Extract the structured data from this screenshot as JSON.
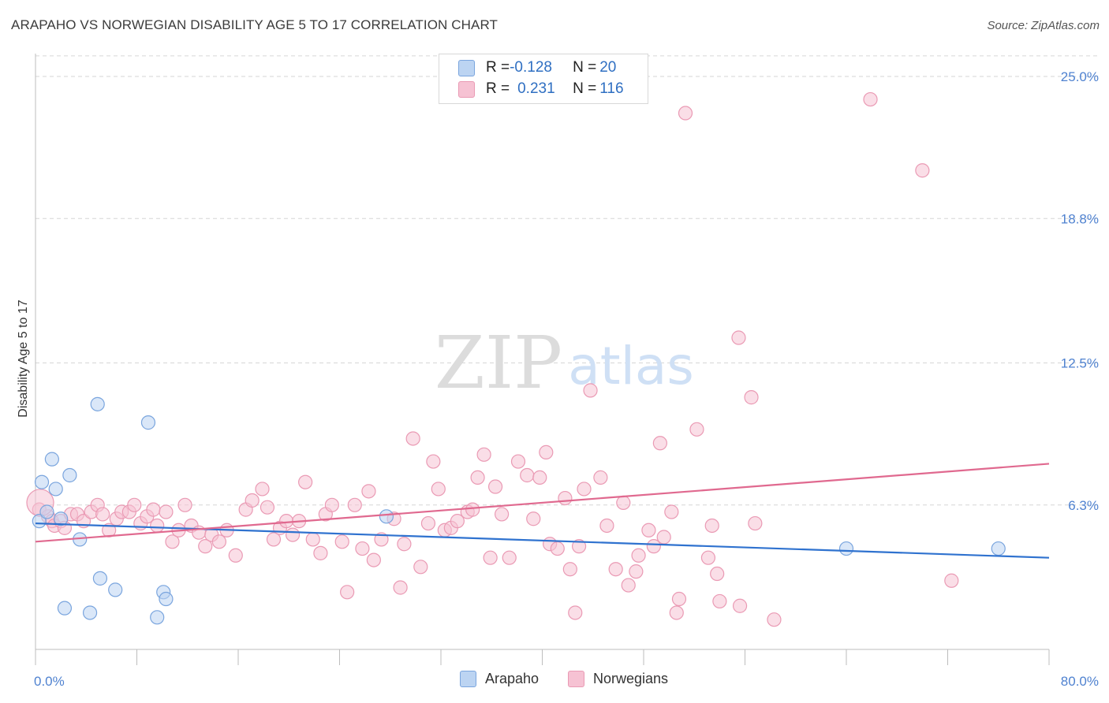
{
  "title": "ARAPAHO VS NORWEGIAN DISABILITY AGE 5 TO 17 CORRELATION CHART",
  "source": "Source: ZipAtlas.com",
  "watermark": {
    "zip": "ZIP",
    "atlas": "atlas"
  },
  "legend": {
    "rows": [
      {
        "r_label": "R = ",
        "r_value": "-0.128",
        "n_label": "N = ",
        "n_value": "20"
      },
      {
        "r_label": "R = ",
        "r_value": "0.231",
        "n_label": "N = ",
        "n_value": "116"
      }
    ]
  },
  "bottom_legend": {
    "arapaho": "Arapaho",
    "norwegians": "Norwegians"
  },
  "colors": {
    "arapaho_fill": "#bcd4f2",
    "arapaho_stroke": "#7aa5de",
    "arapaho_line": "#2f72cf",
    "norwegian_fill": "#f6c2d3",
    "norwegian_stroke": "#ea9ab4",
    "norwegian_line": "#e0698f",
    "tick_label": "#4f82d0",
    "grid": "#d6d6d6"
  },
  "chart_data": {
    "type": "scatter",
    "title": "ARAPAHO VS NORWEGIAN DISABILITY AGE 5 TO 17 CORRELATION CHART",
    "xlabel": "",
    "ylabel": "Disability Age 5 to 17",
    "xlim": [
      0,
      80
    ],
    "ylim": [
      0,
      25.9
    ],
    "x_tick_labels": [
      {
        "value": 0,
        "label": "0.0%"
      },
      {
        "value": 80,
        "label": "80.0%"
      }
    ],
    "y_tick_labels": [
      {
        "value": 6.3,
        "label": "6.3%"
      },
      {
        "value": 12.5,
        "label": "12.5%"
      },
      {
        "value": 18.8,
        "label": "18.8%"
      },
      {
        "value": 25.0,
        "label": "25.0%"
      }
    ],
    "x_minor_ticks": [
      0,
      8,
      16,
      24,
      32,
      40,
      48,
      56,
      64,
      72,
      80
    ],
    "series": [
      {
        "name": "Arapaho",
        "R": -0.128,
        "N": 20,
        "trend": {
          "x": [
            0,
            80
          ],
          "y": [
            5.5,
            4.0
          ]
        },
        "points": [
          [
            0.3,
            5.6
          ],
          [
            0.5,
            7.3
          ],
          [
            0.9,
            6.0
          ],
          [
            1.3,
            8.3
          ],
          [
            1.6,
            7.0
          ],
          [
            2.0,
            5.7
          ],
          [
            2.3,
            1.8
          ],
          [
            2.7,
            7.6
          ],
          [
            3.5,
            4.8
          ],
          [
            4.3,
            1.6
          ],
          [
            4.9,
            10.7
          ],
          [
            5.1,
            3.1
          ],
          [
            6.3,
            2.6
          ],
          [
            8.9,
            9.9
          ],
          [
            9.6,
            1.4
          ],
          [
            10.1,
            2.5
          ],
          [
            10.3,
            2.2
          ],
          [
            27.7,
            5.8
          ],
          [
            64.0,
            4.4
          ],
          [
            76.0,
            4.4
          ]
        ]
      },
      {
        "name": "Norwegians",
        "R": 0.231,
        "N": 116,
        "trend": {
          "x": [
            0,
            80
          ],
          "y": [
            4.7,
            8.1
          ]
        },
        "points": [
          [
            0.3,
            6.1
          ],
          [
            1.0,
            5.8
          ],
          [
            1.3,
            5.6
          ],
          [
            1.5,
            5.4
          ],
          [
            2.0,
            5.6
          ],
          [
            2.3,
            5.3
          ],
          [
            2.8,
            5.9
          ],
          [
            3.3,
            5.9
          ],
          [
            3.8,
            5.6
          ],
          [
            4.4,
            6.0
          ],
          [
            4.9,
            6.3
          ],
          [
            5.3,
            5.9
          ],
          [
            5.8,
            5.2
          ],
          [
            6.4,
            5.7
          ],
          [
            6.8,
            6.0
          ],
          [
            7.4,
            6.0
          ],
          [
            7.8,
            6.3
          ],
          [
            8.3,
            5.5
          ],
          [
            8.8,
            5.8
          ],
          [
            9.3,
            6.1
          ],
          [
            9.6,
            5.4
          ],
          [
            10.3,
            6.0
          ],
          [
            10.8,
            4.7
          ],
          [
            11.3,
            5.2
          ],
          [
            11.8,
            6.3
          ],
          [
            12.3,
            5.4
          ],
          [
            12.9,
            5.1
          ],
          [
            13.4,
            4.5
          ],
          [
            13.9,
            5.0
          ],
          [
            14.5,
            4.7
          ],
          [
            15.1,
            5.2
          ],
          [
            15.8,
            4.1
          ],
          [
            16.6,
            6.1
          ],
          [
            17.1,
            6.5
          ],
          [
            17.9,
            7.0
          ],
          [
            18.3,
            6.2
          ],
          [
            18.8,
            4.8
          ],
          [
            19.3,
            5.3
          ],
          [
            19.8,
            5.6
          ],
          [
            20.3,
            5.0
          ],
          [
            20.8,
            5.6
          ],
          [
            21.3,
            7.3
          ],
          [
            21.9,
            4.8
          ],
          [
            22.5,
            4.2
          ],
          [
            22.9,
            5.9
          ],
          [
            23.4,
            6.3
          ],
          [
            24.2,
            4.7
          ],
          [
            24.6,
            2.5
          ],
          [
            25.2,
            6.3
          ],
          [
            25.8,
            4.4
          ],
          [
            26.3,
            6.9
          ],
          [
            26.7,
            3.9
          ],
          [
            27.3,
            4.8
          ],
          [
            28.3,
            5.7
          ],
          [
            28.8,
            2.7
          ],
          [
            29.1,
            4.6
          ],
          [
            29.8,
            9.2
          ],
          [
            30.4,
            3.6
          ],
          [
            31.0,
            5.5
          ],
          [
            31.4,
            8.2
          ],
          [
            31.8,
            7.0
          ],
          [
            32.3,
            5.2
          ],
          [
            32.8,
            5.3
          ],
          [
            33.3,
            5.6
          ],
          [
            34.1,
            6.0
          ],
          [
            34.5,
            6.1
          ],
          [
            34.9,
            7.5
          ],
          [
            35.4,
            8.5
          ],
          [
            35.9,
            4.0
          ],
          [
            36.3,
            7.1
          ],
          [
            36.8,
            5.9
          ],
          [
            37.4,
            4.0
          ],
          [
            38.1,
            8.2
          ],
          [
            38.8,
            7.6
          ],
          [
            39.3,
            5.7
          ],
          [
            39.8,
            7.5
          ],
          [
            40.3,
            8.6
          ],
          [
            40.6,
            4.6
          ],
          [
            41.2,
            4.4
          ],
          [
            41.8,
            6.6
          ],
          [
            42.2,
            3.5
          ],
          [
            42.6,
            1.6
          ],
          [
            42.9,
            4.5
          ],
          [
            43.3,
            7.0
          ],
          [
            43.8,
            11.3
          ],
          [
            44.6,
            7.5
          ],
          [
            45.1,
            5.4
          ],
          [
            45.8,
            3.5
          ],
          [
            46.4,
            6.4
          ],
          [
            46.8,
            2.8
          ],
          [
            47.4,
            3.4
          ],
          [
            47.6,
            4.1
          ],
          [
            48.4,
            5.2
          ],
          [
            48.8,
            4.5
          ],
          [
            49.3,
            9.0
          ],
          [
            49.6,
            4.9
          ],
          [
            50.2,
            6.0
          ],
          [
            50.8,
            2.2
          ],
          [
            50.6,
            1.6
          ],
          [
            51.3,
            23.4
          ],
          [
            52.2,
            9.6
          ],
          [
            53.1,
            4.0
          ],
          [
            53.4,
            5.4
          ],
          [
            53.8,
            3.3
          ],
          [
            54.0,
            2.1
          ],
          [
            55.5,
            13.6
          ],
          [
            55.6,
            1.9
          ],
          [
            56.5,
            11.0
          ],
          [
            56.8,
            5.5
          ],
          [
            58.3,
            1.3
          ],
          [
            65.9,
            24.0
          ],
          [
            70.0,
            20.9
          ],
          [
            72.3,
            3.0
          ],
          [
            0.0,
            6.3
          ]
        ]
      }
    ]
  }
}
